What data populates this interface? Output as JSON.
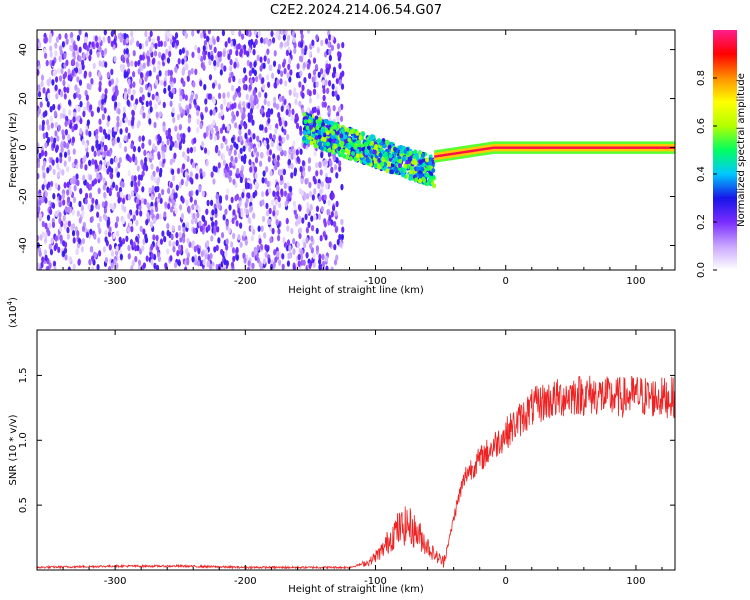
{
  "title": "C2E2.2024.214.06.54.G07",
  "colors": {
    "snr_line": "#ee2222",
    "axis": "#000000"
  },
  "chart_data": [
    {
      "type": "heatmap",
      "xlabel": "Height of straight line (km)",
      "ylabel": "Frequency (Hz)",
      "xlim": [
        -360,
        130
      ],
      "ylim": [
        -50,
        48
      ],
      "xticks": [
        -300,
        -200,
        -100,
        0,
        100
      ],
      "yticks": [
        -40,
        -20,
        0,
        20,
        40
      ],
      "colorbar": {
        "label": "Normalized spectral amplitude",
        "range": [
          0.0,
          1.0
        ],
        "ticks": [
          0.0,
          0.2,
          0.4,
          0.6,
          0.8
        ],
        "tick_labels": [
          "0.0",
          "0.2",
          "0.4",
          "0.6",
          "0.8"
        ],
        "colormap": [
          "#ffffff",
          "#c9a6ff",
          "#7a2cff",
          "#1616e8",
          "#00c8ff",
          "#00ff60",
          "#b4ff00",
          "#ffff00",
          "#ff9000",
          "#ff0000",
          "#ff1e8c"
        ]
      },
      "regions": [
        {
          "desc": "noise",
          "x": [
            -360,
            -125
          ],
          "freq": [
            -50,
            48
          ],
          "amplitude": 0.15
        },
        {
          "desc": "signal emergence",
          "x": [
            -155,
            -55
          ],
          "freq_center": [
            8,
            -10
          ],
          "amplitude": 0.45
        },
        {
          "desc": "tracking",
          "x": [
            -55,
            130
          ],
          "freq_center": 0,
          "amplitude": 0.95
        }
      ]
    },
    {
      "type": "line",
      "xlabel": "Height of straight line (km)",
      "ylabel": "SNR (10 * v/v)",
      "scale_label": "(x10",
      "scale_exp": "4",
      "xlim": [
        -360,
        130
      ],
      "ylim": [
        0,
        1.85
      ],
      "xticks": [
        -300,
        -200,
        -100,
        0,
        100
      ],
      "yticks": [
        0.5,
        1.0,
        1.5
      ],
      "ytick_labels": [
        "0.5",
        "1.0",
        "1.5"
      ],
      "series": [
        {
          "x": [
            -360,
            -300,
            -250,
            -200,
            -150,
            -120,
            -105,
            -95,
            -85,
            -75,
            -65,
            -55,
            -48,
            -43,
            -40,
            -35,
            -30,
            -25,
            -20,
            -15,
            -10,
            -5,
            0,
            10,
            20,
            30,
            40,
            50,
            60,
            70,
            80,
            90,
            100,
            110,
            120,
            130
          ],
          "values": [
            0.02,
            0.03,
            0.03,
            0.02,
            0.02,
            0.02,
            0.06,
            0.15,
            0.3,
            0.35,
            0.25,
            0.12,
            0.06,
            0.25,
            0.4,
            0.6,
            0.75,
            0.8,
            0.85,
            0.9,
            0.95,
            1.0,
            1.05,
            1.15,
            1.25,
            1.3,
            1.32,
            1.35,
            1.35,
            1.35,
            1.33,
            1.33,
            1.35,
            1.33,
            1.33,
            1.33
          ]
        }
      ]
    }
  ]
}
